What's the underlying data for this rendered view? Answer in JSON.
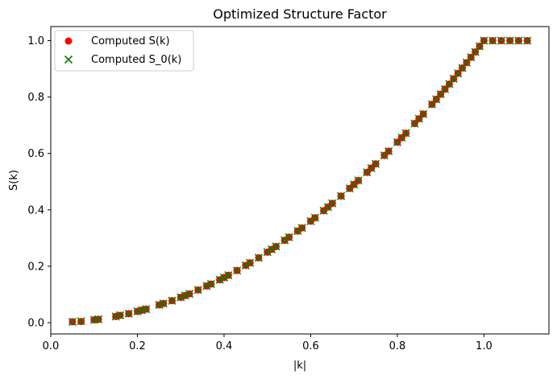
{
  "chart_data": {
    "type": "scatter",
    "title": "Optimized Structure Factor",
    "xlabel": "|k|",
    "ylabel": "S(k)",
    "xlim": [
      0.0,
      1.15
    ],
    "ylim": [
      -0.04,
      1.05
    ],
    "x_ticks": [
      0.0,
      0.2,
      0.4,
      0.6,
      0.8,
      1.0
    ],
    "x_tick_labels": [
      "0.0",
      "0.2",
      "0.4",
      "0.6",
      "0.8",
      "1.0"
    ],
    "y_ticks": [
      0.0,
      0.2,
      0.4,
      0.6,
      0.8,
      1.0
    ],
    "y_tick_labels": [
      "0.0",
      "0.2",
      "0.4",
      "0.6",
      "0.8",
      "1.0"
    ],
    "grid": false,
    "legend_position": "top-left",
    "series": [
      {
        "name": "Computed S(k)",
        "marker": "circle",
        "color": "#ff0000",
        "x": [
          0.05,
          0.07,
          0.1,
          0.11,
          0.15,
          0.16,
          0.18,
          0.2,
          0.21,
          0.22,
          0.25,
          0.26,
          0.28,
          0.3,
          0.31,
          0.32,
          0.34,
          0.36,
          0.37,
          0.39,
          0.4,
          0.41,
          0.43,
          0.45,
          0.46,
          0.48,
          0.5,
          0.51,
          0.52,
          0.54,
          0.55,
          0.57,
          0.58,
          0.6,
          0.61,
          0.63,
          0.64,
          0.65,
          0.67,
          0.69,
          0.7,
          0.71,
          0.73,
          0.74,
          0.75,
          0.77,
          0.78,
          0.8,
          0.81,
          0.82,
          0.84,
          0.85,
          0.86,
          0.88,
          0.89,
          0.9,
          0.91,
          0.92,
          0.93,
          0.94,
          0.95,
          0.96,
          0.97,
          0.98,
          0.99,
          1.0,
          1.02,
          1.04,
          1.06,
          1.08,
          1.1
        ],
        "y": [
          0.003,
          0.004,
          0.01,
          0.012,
          0.022,
          0.026,
          0.032,
          0.04,
          0.044,
          0.048,
          0.063,
          0.068,
          0.078,
          0.09,
          0.096,
          0.102,
          0.116,
          0.13,
          0.137,
          0.152,
          0.16,
          0.168,
          0.185,
          0.203,
          0.212,
          0.23,
          0.25,
          0.26,
          0.27,
          0.292,
          0.303,
          0.325,
          0.336,
          0.36,
          0.372,
          0.397,
          0.41,
          0.423,
          0.449,
          0.476,
          0.49,
          0.504,
          0.533,
          0.548,
          0.563,
          0.593,
          0.608,
          0.64,
          0.656,
          0.672,
          0.706,
          0.723,
          0.74,
          0.774,
          0.792,
          0.81,
          0.828,
          0.846,
          0.865,
          0.884,
          0.903,
          0.922,
          0.941,
          0.96,
          0.98,
          1.0,
          1.0,
          1.0,
          1.0,
          1.0,
          1.0
        ]
      },
      {
        "name": "Computed S_0(k)",
        "marker": "x",
        "color": "#008000",
        "x": [
          0.05,
          0.07,
          0.1,
          0.11,
          0.15,
          0.16,
          0.18,
          0.2,
          0.21,
          0.22,
          0.25,
          0.26,
          0.28,
          0.3,
          0.31,
          0.32,
          0.34,
          0.36,
          0.37,
          0.39,
          0.4,
          0.41,
          0.43,
          0.45,
          0.46,
          0.48,
          0.5,
          0.51,
          0.52,
          0.54,
          0.55,
          0.57,
          0.58,
          0.6,
          0.61,
          0.63,
          0.64,
          0.65,
          0.67,
          0.69,
          0.7,
          0.71,
          0.73,
          0.74,
          0.75,
          0.77,
          0.78,
          0.8,
          0.81,
          0.82,
          0.84,
          0.85,
          0.86,
          0.88,
          0.89,
          0.9,
          0.91,
          0.92,
          0.93,
          0.94,
          0.95,
          0.96,
          0.97,
          0.98,
          0.99,
          1.0,
          1.02,
          1.04,
          1.06,
          1.08,
          1.1
        ],
        "y": [
          0.003,
          0.005,
          0.01,
          0.012,
          0.022,
          0.026,
          0.032,
          0.04,
          0.044,
          0.048,
          0.063,
          0.068,
          0.078,
          0.09,
          0.096,
          0.102,
          0.116,
          0.13,
          0.137,
          0.152,
          0.16,
          0.168,
          0.185,
          0.203,
          0.212,
          0.23,
          0.25,
          0.26,
          0.27,
          0.292,
          0.303,
          0.325,
          0.336,
          0.36,
          0.372,
          0.397,
          0.41,
          0.423,
          0.449,
          0.476,
          0.49,
          0.504,
          0.533,
          0.548,
          0.563,
          0.593,
          0.608,
          0.64,
          0.656,
          0.672,
          0.706,
          0.723,
          0.74,
          0.774,
          0.792,
          0.81,
          0.828,
          0.846,
          0.865,
          0.884,
          0.903,
          0.922,
          0.941,
          0.96,
          0.98,
          1.0,
          1.0,
          1.0,
          1.0,
          1.0,
          1.0
        ]
      }
    ]
  }
}
